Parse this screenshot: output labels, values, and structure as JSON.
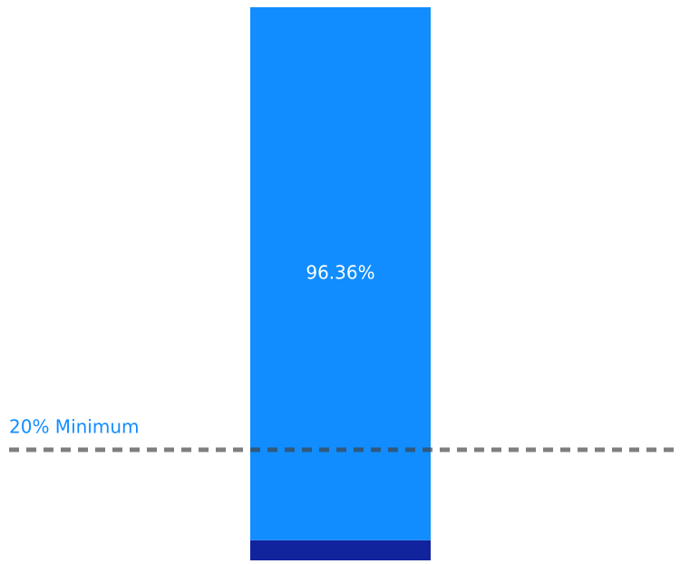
{
  "chart_data": {
    "type": "stacked_bar",
    "categories": [
      null
    ],
    "ylim": [
      0,
      100
    ],
    "series": [
      {
        "color": "#12239e",
        "values": [
          3.64
        ]
      },
      {
        "color": "#118dff",
        "values": [
          96.36
        ],
        "value_labels": [
          "96.36%"
        ]
      }
    ],
    "reference_line": {
      "value": 20,
      "label": "20% Minimum",
      "color": "#118dff"
    }
  }
}
